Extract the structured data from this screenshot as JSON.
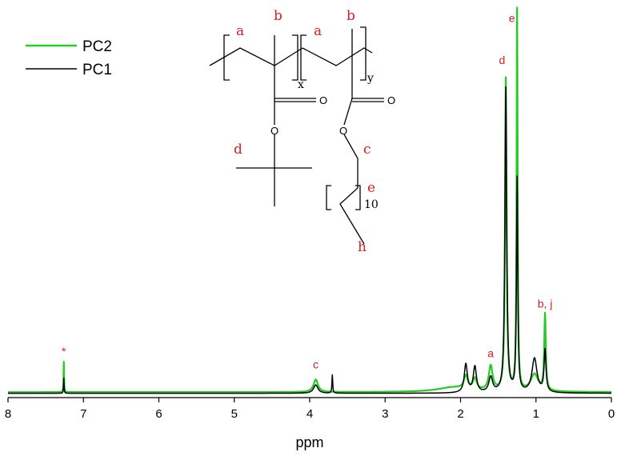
{
  "chart_data": {
    "type": "line",
    "xlabel": "ppm",
    "xlim": [
      8,
      0
    ],
    "x_reversed": true,
    "x_ticks": [
      "8",
      "7",
      "6",
      "5",
      "4",
      "3",
      "2",
      "1",
      "0"
    ],
    "y_ticks": [],
    "grid": false,
    "legend_position": "top-left",
    "series": [
      {
        "name": "PC2",
        "color": "#22cc22",
        "baseline": 0.008,
        "peaks": [
          {
            "center": 7.26,
            "height": 0.08,
            "width": 0.004
          },
          {
            "center": 3.92,
            "height": 0.033,
            "width": 0.035
          },
          {
            "center": 1.93,
            "height": 0.035,
            "width": 0.03
          },
          {
            "center": 1.81,
            "height": 0.03,
            "width": 0.03
          },
          {
            "center": 1.6,
            "height": 0.065,
            "width": 0.03
          },
          {
            "center": 1.4,
            "height": 0.82,
            "width": 0.012
          },
          {
            "center": 1.25,
            "height": 1.0,
            "width": 0.008
          },
          {
            "center": 1.02,
            "height": 0.045,
            "width": 0.06
          },
          {
            "center": 0.88,
            "height": 0.2,
            "width": 0.012
          },
          {
            "center": 2.1,
            "height": 0.012,
            "width": 0.25
          }
        ]
      },
      {
        "name": "PC1",
        "color": "#000000",
        "baseline": 0.005,
        "peaks": [
          {
            "center": 7.26,
            "height": 0.04,
            "width": 0.004
          },
          {
            "center": 3.92,
            "height": 0.022,
            "width": 0.035
          },
          {
            "center": 3.7,
            "height": 0.048,
            "width": 0.006
          },
          {
            "center": 1.93,
            "height": 0.075,
            "width": 0.025
          },
          {
            "center": 1.81,
            "height": 0.068,
            "width": 0.025
          },
          {
            "center": 1.6,
            "height": 0.04,
            "width": 0.03
          },
          {
            "center": 1.4,
            "height": 0.8,
            "width": 0.014
          },
          {
            "center": 1.25,
            "height": 0.56,
            "width": 0.01
          },
          {
            "center": 1.02,
            "height": 0.09,
            "width": 0.04
          },
          {
            "center": 0.88,
            "height": 0.11,
            "width": 0.015
          }
        ]
      }
    ],
    "peak_labels": [
      {
        "text": "*",
        "x": 7.26,
        "y": 0.105
      },
      {
        "text": "c",
        "x": 3.92,
        "y": 0.07
      },
      {
        "text": "a",
        "x": 1.6,
        "y": 0.1
      },
      {
        "text": "d",
        "x": 1.45,
        "y": 0.87
      },
      {
        "text": "e",
        "x": 1.32,
        "y": 0.98
      },
      {
        "text": "b, j",
        "x": 0.88,
        "y": 0.23
      }
    ]
  },
  "structure": {
    "labels": {
      "a1": "a",
      "b1": "b",
      "a2": "a",
      "b2": "b",
      "d": "d",
      "c": "c",
      "e": "e",
      "h": "h"
    },
    "subscripts": {
      "x": "x",
      "y": "y",
      "n": "10"
    },
    "atoms": {
      "o1": "O",
      "o2": "O",
      "o3": "O",
      "o4": "O"
    }
  }
}
